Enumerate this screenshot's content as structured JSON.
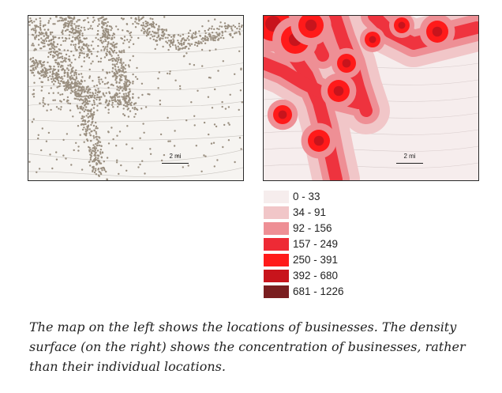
{
  "left_map": {
    "scale_label": "2 mi"
  },
  "right_map": {
    "scale_label": "2 mi"
  },
  "legend": {
    "items": [
      {
        "label": "0 - 33",
        "color": "#f6eded"
      },
      {
        "label": "34 - 91",
        "color": "#f1c6c8"
      },
      {
        "label": "92 - 156",
        "color": "#ee8f95"
      },
      {
        "label": "157 - 249",
        "color": "#ee2a35"
      },
      {
        "label": "250 - 391",
        "color": "#ff1a1a"
      },
      {
        "label": "392 - 680",
        "color": "#c8141c"
      },
      {
        "label": "681 - 1226",
        "color": "#7a1e20"
      }
    ]
  },
  "caption": "The map on the left shows the locations of businesses. The density surface (on the right) shows the concentration of businesses, rather than their individual locations."
}
